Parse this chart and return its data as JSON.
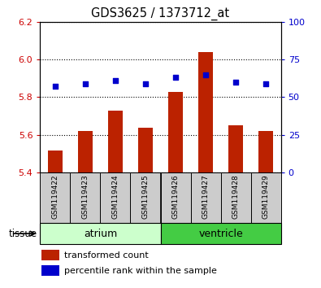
{
  "title": "GDS3625 / 1373712_at",
  "samples": [
    "GSM119422",
    "GSM119423",
    "GSM119424",
    "GSM119425",
    "GSM119426",
    "GSM119427",
    "GSM119428",
    "GSM119429"
  ],
  "transformed_counts": [
    5.52,
    5.62,
    5.73,
    5.64,
    5.83,
    6.04,
    5.65,
    5.62
  ],
  "percentile_ranks": [
    57,
    59,
    61,
    59,
    63,
    65,
    60,
    59
  ],
  "ylim_left": [
    5.4,
    6.2
  ],
  "ylim_right": [
    0,
    100
  ],
  "yticks_left": [
    5.4,
    5.6,
    5.8,
    6.0,
    6.2
  ],
  "yticks_right": [
    0,
    25,
    50,
    75,
    100
  ],
  "bar_color": "#bb2200",
  "scatter_color": "#0000cc",
  "tissue_groups": [
    {
      "label": "atrium",
      "start": 0,
      "end": 3,
      "color": "#ccffcc"
    },
    {
      "label": "ventricle",
      "start": 4,
      "end": 7,
      "color": "#44cc44"
    }
  ],
  "tissue_label": "tissue",
  "bar_width": 0.5,
  "ylabel_left_color": "#cc0000",
  "ylabel_right_color": "#0000cc",
  "sample_box_color": "#cccccc",
  "legend_items": [
    {
      "label": "transformed count",
      "color": "#bb2200"
    },
    {
      "label": "percentile rank within the sample",
      "color": "#0000cc"
    }
  ]
}
